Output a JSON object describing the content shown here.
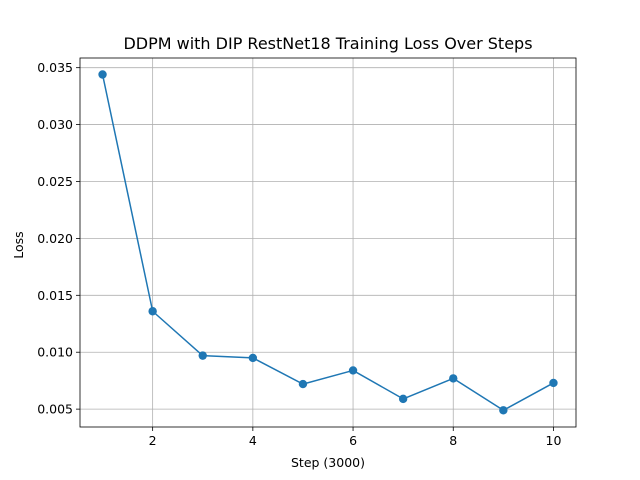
{
  "chart_data": {
    "type": "line",
    "title": "DDPM with DIP RestNet18 Training Loss Over Steps",
    "xlabel": "Step (3000)",
    "ylabel": "Loss",
    "x": [
      1,
      2,
      3,
      4,
      5,
      6,
      7,
      8,
      9,
      10
    ],
    "series": [
      {
        "values": [
          0.0344,
          0.0136,
          0.0097,
          0.0095,
          0.0072,
          0.0084,
          0.0059,
          0.0077,
          0.0049,
          0.0073
        ],
        "color": "#1f77b4",
        "marker": "circle"
      }
    ],
    "xlim": [
      0.55,
      10.45
    ],
    "ylim": [
      0.00343,
      0.03585
    ],
    "xticks": [
      2,
      4,
      6,
      8,
      10
    ],
    "xtick_labels": [
      "2",
      "4",
      "6",
      "8",
      "10"
    ],
    "yticks": [
      0.005,
      0.01,
      0.015,
      0.02,
      0.025,
      0.03,
      0.035
    ],
    "ytick_labels": [
      "0.005",
      "0.010",
      "0.015",
      "0.020",
      "0.025",
      "0.030",
      "0.035"
    ],
    "grid": true,
    "legend": "none",
    "colors": {
      "grid": "#b0b0b0",
      "axes": "#000000",
      "background": "#ffffff"
    }
  }
}
